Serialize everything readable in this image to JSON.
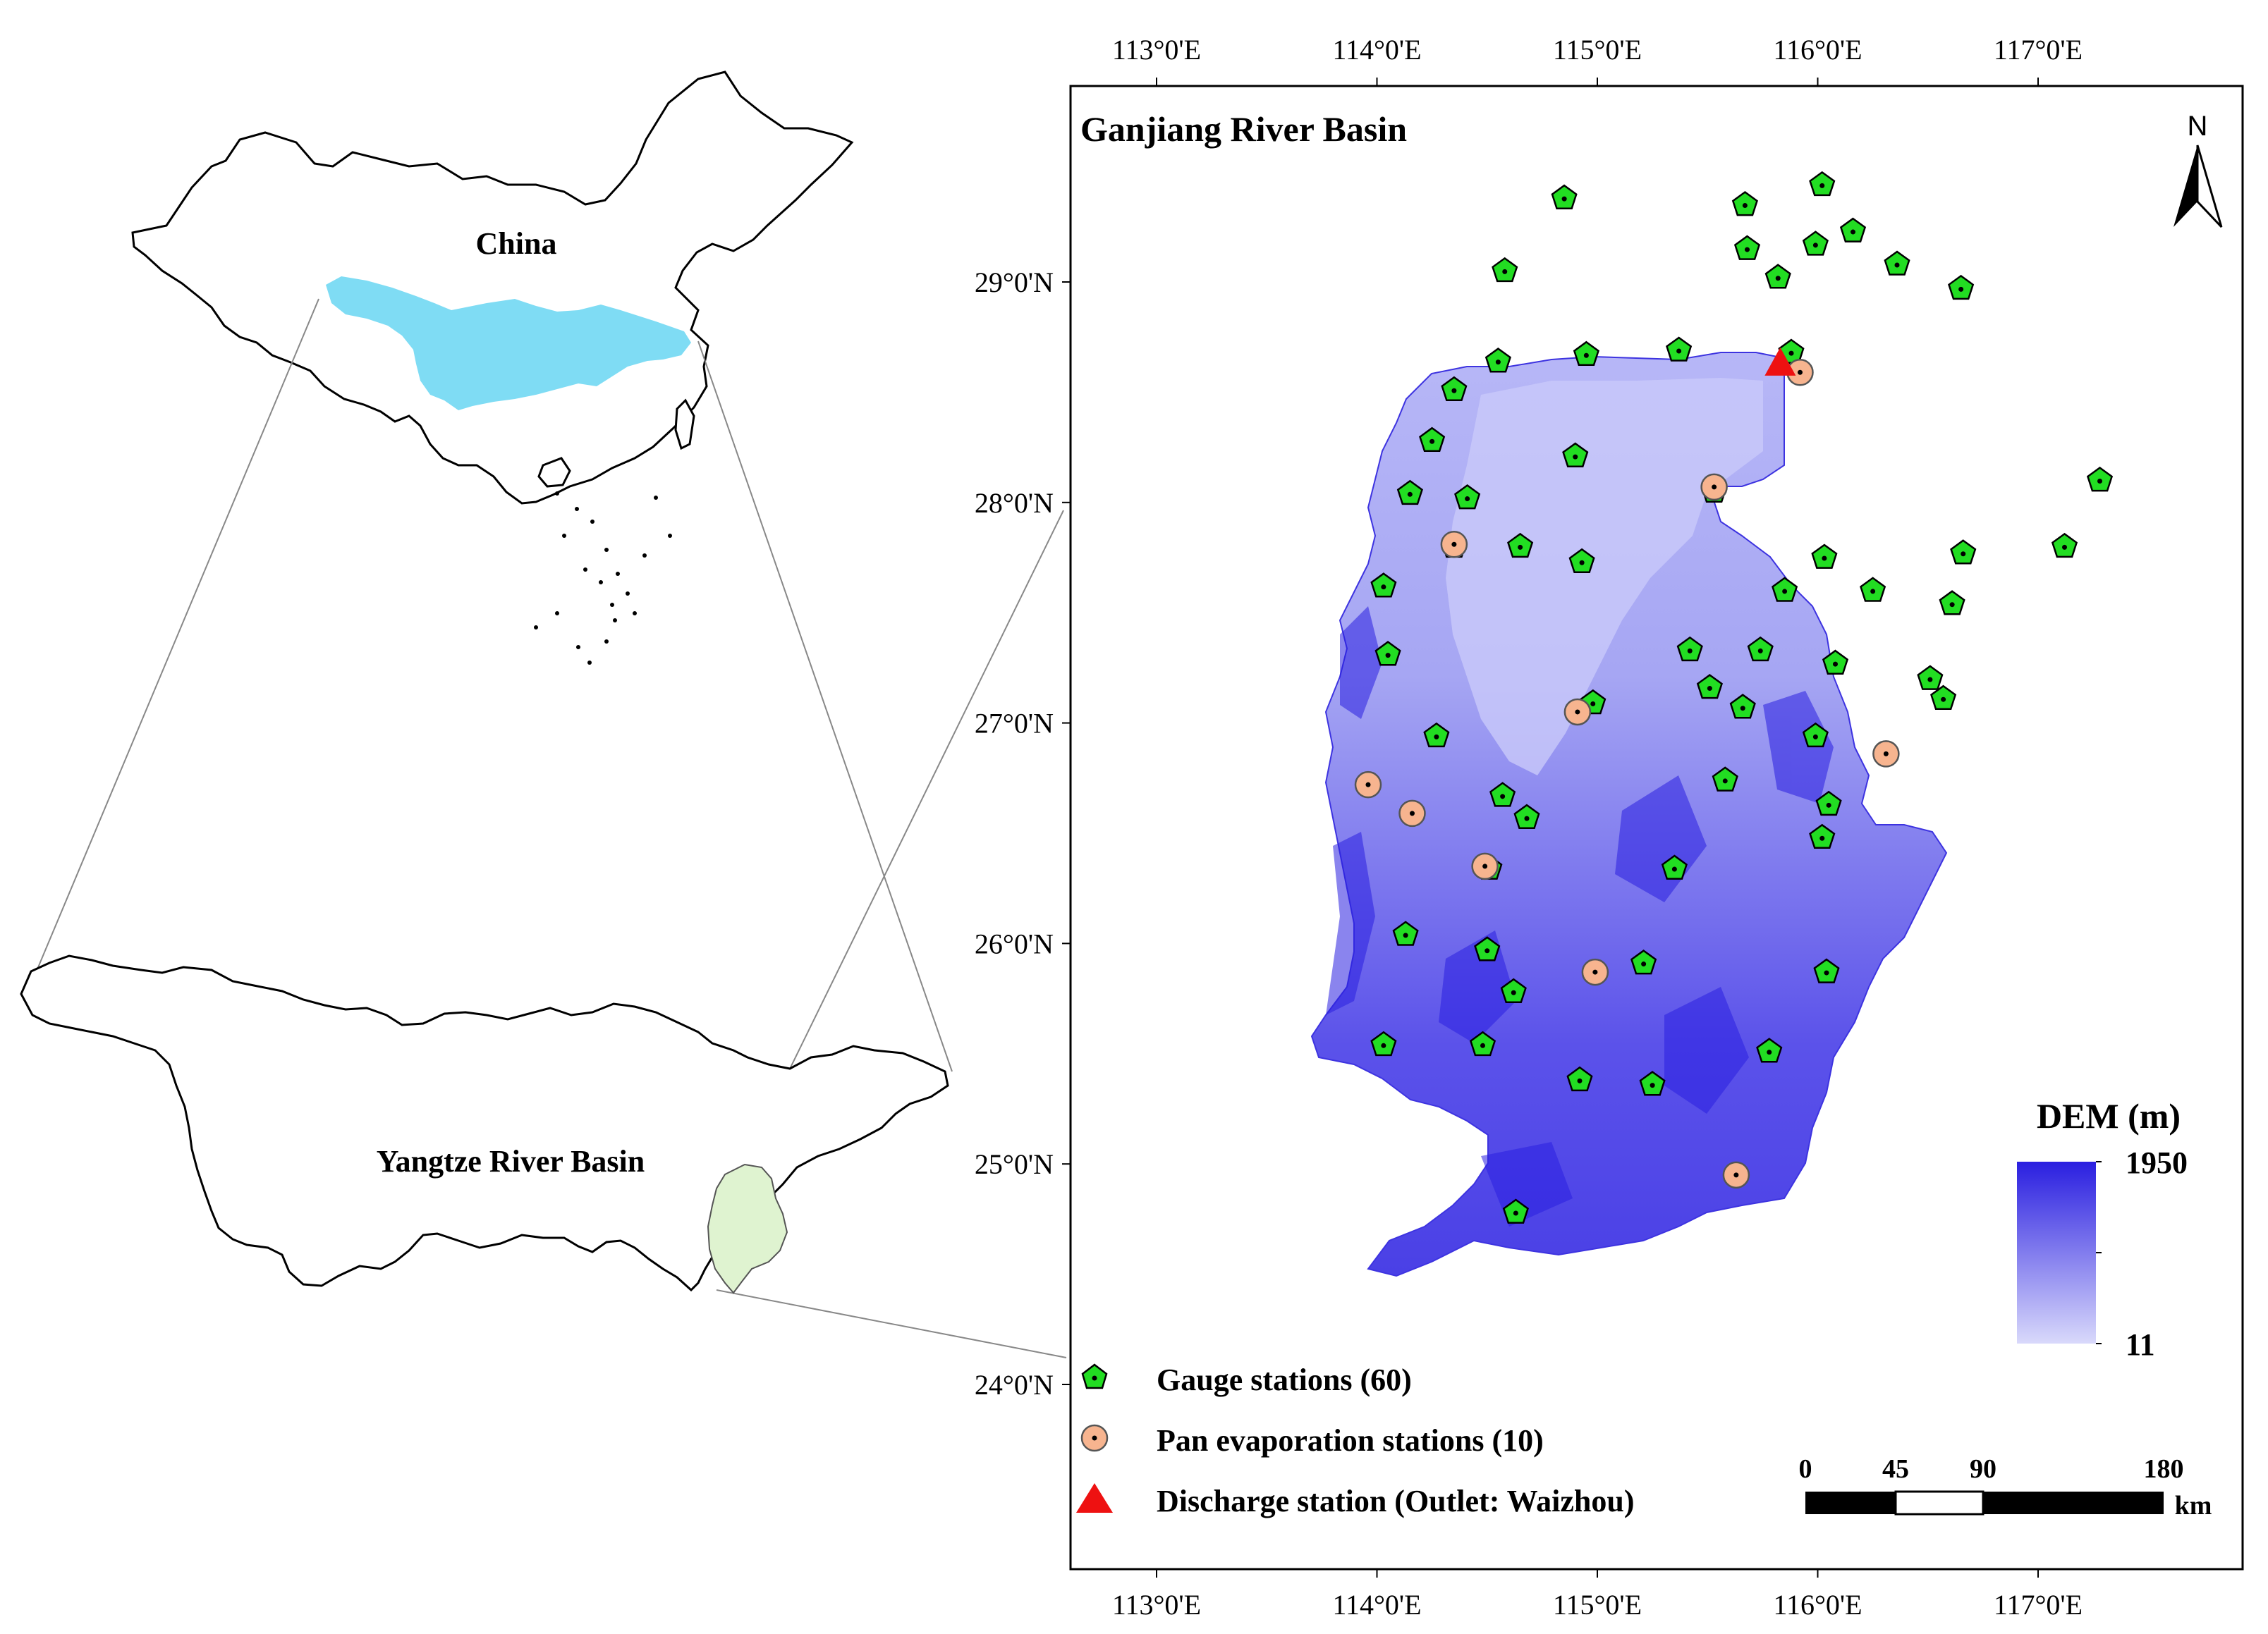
{
  "left_panel": {
    "china_label": "China",
    "yangtze_label": "Yangtze River Basin",
    "china_basin_color": "#7fdcf4",
    "ganjiang_color": "#dff3d0"
  },
  "main_map": {
    "title": "Ganjiang River Basin",
    "north_label": "N",
    "top_longitudes": [
      "113°0'E",
      "114°0'E",
      "115°0'E",
      "116°0'E",
      "117°0'E"
    ],
    "bottom_longitudes": [
      "113°0'E",
      "114°0'E",
      "115°0'E",
      "116°0'E",
      "117°0'E"
    ],
    "latitudes": [
      "29°0'N",
      "28°0'N",
      "27°0'N",
      "26°0'N",
      "25°0'N",
      "24°0'N"
    ],
    "dem": {
      "title": "DEM (m)",
      "max_label": "1950",
      "min_label": "11",
      "high_color": "#2a1fe0",
      "low_color": "#d9d9fb"
    },
    "legend": {
      "gauge": "Gauge stations (60)",
      "pan": "Pan evaporation stations (10)",
      "discharge": "Discharge station (Outlet: Waizhou)"
    },
    "scale_bar": {
      "ticks": [
        "0",
        "45",
        "90",
        "180"
      ],
      "unit": "km"
    },
    "colors": {
      "gauge": "#22dd22",
      "pan": "#f7b48f",
      "discharge": "#ee1111"
    },
    "gauge_stations": [
      [
        114.85,
        29.38
      ],
      [
        115.67,
        29.35
      ],
      [
        116.02,
        29.44
      ],
      [
        115.68,
        29.15
      ],
      [
        115.99,
        29.17
      ],
      [
        116.16,
        29.23
      ],
      [
        115.82,
        29.02
      ],
      [
        116.36,
        29.08
      ],
      [
        116.65,
        28.97
      ],
      [
        114.58,
        29.05
      ],
      [
        114.55,
        28.64
      ],
      [
        114.95,
        28.67
      ],
      [
        115.37,
        28.69
      ],
      [
        115.88,
        28.68
      ],
      [
        114.35,
        28.51
      ],
      [
        114.25,
        28.28
      ],
      [
        114.9,
        28.21
      ],
      [
        115.53,
        28.05
      ],
      [
        114.15,
        28.04
      ],
      [
        114.41,
        28.02
      ],
      [
        114.35,
        27.8
      ],
      [
        114.65,
        27.8
      ],
      [
        114.93,
        27.73
      ],
      [
        116.03,
        27.75
      ],
      [
        116.66,
        27.77
      ],
      [
        117.12,
        27.8
      ],
      [
        117.28,
        28.1
      ],
      [
        115.85,
        27.6
      ],
      [
        116.25,
        27.6
      ],
      [
        116.61,
        27.54
      ],
      [
        114.03,
        27.62
      ],
      [
        114.05,
        27.31
      ],
      [
        115.42,
        27.33
      ],
      [
        115.74,
        27.33
      ],
      [
        116.08,
        27.27
      ],
      [
        116.51,
        27.2
      ],
      [
        116.57,
        27.11
      ],
      [
        115.51,
        27.16
      ],
      [
        115.66,
        27.07
      ],
      [
        114.98,
        27.09
      ],
      [
        114.27,
        26.94
      ],
      [
        115.99,
        26.94
      ],
      [
        115.58,
        26.74
      ],
      [
        114.57,
        26.67
      ],
      [
        114.68,
        26.57
      ],
      [
        116.05,
        26.63
      ],
      [
        116.02,
        26.48
      ],
      [
        114.51,
        26.34
      ],
      [
        115.35,
        26.34
      ],
      [
        114.13,
        26.04
      ],
      [
        114.5,
        25.97
      ],
      [
        115.21,
        25.91
      ],
      [
        116.04,
        25.87
      ],
      [
        114.62,
        25.78
      ],
      [
        114.03,
        25.54
      ],
      [
        114.48,
        25.54
      ],
      [
        115.78,
        25.51
      ],
      [
        114.92,
        25.38
      ],
      [
        115.25,
        25.36
      ],
      [
        114.63,
        24.78
      ]
    ],
    "pan_stations": [
      [
        115.92,
        28.59
      ],
      [
        115.53,
        28.07
      ],
      [
        114.35,
        27.81
      ],
      [
        114.91,
        27.05
      ],
      [
        116.31,
        26.86
      ],
      [
        113.96,
        26.72
      ],
      [
        114.16,
        26.59
      ],
      [
        114.49,
        26.35
      ],
      [
        114.99,
        25.87
      ],
      [
        115.63,
        24.95
      ]
    ],
    "discharge_station": [
      115.83,
      28.62
    ]
  }
}
